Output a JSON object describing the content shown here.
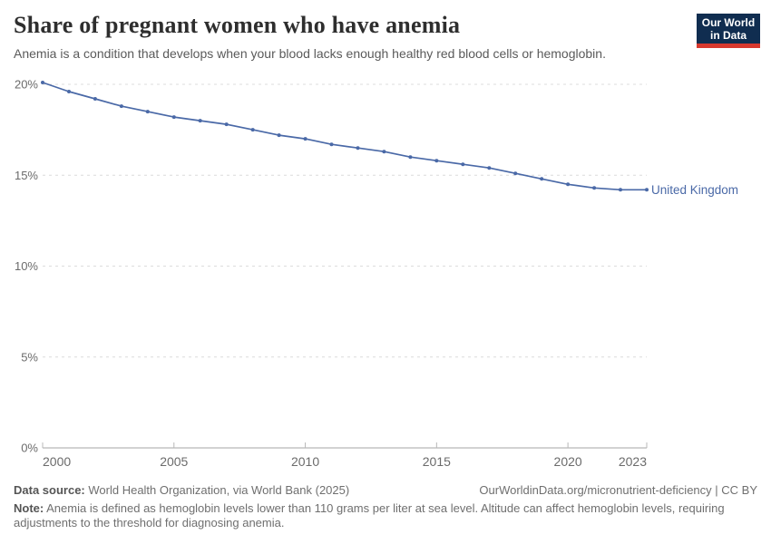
{
  "header": {
    "title": "Share of pregnant women who have anemia",
    "subtitle": "Anemia is a condition that develops when your blood lacks enough healthy red blood cells or hemoglobin.",
    "logo": {
      "line1": "Our World",
      "line2": "in Data"
    }
  },
  "chart_data": {
    "type": "line",
    "title": "Share of pregnant women who have anemia",
    "x": [
      2000,
      2001,
      2002,
      2003,
      2004,
      2005,
      2006,
      2007,
      2008,
      2009,
      2010,
      2011,
      2012,
      2013,
      2014,
      2015,
      2016,
      2017,
      2018,
      2019,
      2020,
      2021,
      2022,
      2023
    ],
    "series": [
      {
        "name": "United Kingdom",
        "color": "#4a69a7",
        "values": [
          20.1,
          19.6,
          19.2,
          18.8,
          18.5,
          18.2,
          18.0,
          17.8,
          17.5,
          17.2,
          17.0,
          16.7,
          16.5,
          16.3,
          16.0,
          15.8,
          15.6,
          15.4,
          15.1,
          14.8,
          14.5,
          14.3,
          14.2,
          14.2
        ]
      }
    ],
    "xlabel": "",
    "ylabel": "",
    "xlim": [
      2000,
      2023
    ],
    "ylim": [
      0,
      20
    ],
    "x_ticks": [
      2000,
      2005,
      2010,
      2015,
      2020,
      2023
    ],
    "y_ticks": [
      {
        "value": 0,
        "label": "0%"
      },
      {
        "value": 5,
        "label": "5%"
      },
      {
        "value": 10,
        "label": "10%"
      },
      {
        "value": 15,
        "label": "15%"
      },
      {
        "value": 20,
        "label": "20%"
      }
    ],
    "grid": "horizontal-dashed",
    "legend_position": "line-end-label"
  },
  "footer": {
    "source_label": "Data source:",
    "source_text": "World Health Organization, via World Bank (2025)",
    "attribution": "OurWorldinData.org/micronutrient-deficiency | CC BY",
    "note_label": "Note:",
    "note_text": "Anemia is defined as hemoglobin levels lower than 110 grams per liter at sea level. Altitude can affect hemoglobin levels, requiring adjustments to the threshold for diagnosing anemia."
  },
  "colors": {
    "line": "#4a69a7",
    "grid": "#dcdcdc",
    "axis": "#a5a5a5",
    "tick": "#b8b8b8",
    "logo_bg": "#102d50",
    "logo_red": "#d7382e"
  }
}
